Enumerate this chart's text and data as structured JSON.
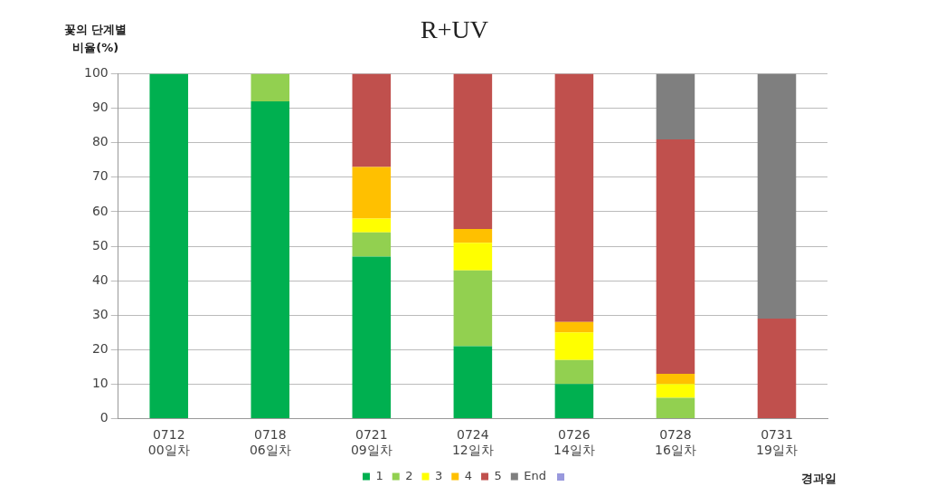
{
  "chart_data": {
    "type": "bar",
    "title": "R+UV",
    "ylabel": "꽃의 단계별 비율(%)",
    "xlabel": "경과일",
    "stacked": true,
    "grid": "y",
    "legend": "bottom",
    "categories": [
      "0712 00일차",
      "0718 06일차",
      "0721 09일차",
      "0724 12일차",
      "0726 14일차",
      "0728 16일차",
      "0731 19일차"
    ],
    "ylim": [
      0,
      100
    ],
    "yticks": [
      0,
      10,
      20,
      30,
      40,
      50,
      60,
      70,
      80,
      90,
      100
    ],
    "series": [
      {
        "name": "1",
        "color": "#00b050",
        "values": [
          100,
          92,
          47,
          21,
          10,
          0,
          0
        ]
      },
      {
        "name": "2",
        "color": "#92d050",
        "values": [
          0,
          8,
          7,
          22,
          7,
          6,
          0
        ]
      },
      {
        "name": "3",
        "color": "#ffff00",
        "values": [
          0,
          0,
          4,
          8,
          8,
          4,
          0
        ]
      },
      {
        "name": "4",
        "color": "#ffc000",
        "values": [
          0,
          0,
          15,
          4,
          3,
          3,
          0
        ]
      },
      {
        "name": "5",
        "color": "#c0504d",
        "values": [
          0,
          0,
          27,
          45,
          72,
          68,
          29
        ]
      },
      {
        "name": "End",
        "color": "#7f7f7f",
        "values": [
          0,
          0,
          0,
          0,
          0,
          19,
          71
        ]
      }
    ]
  }
}
